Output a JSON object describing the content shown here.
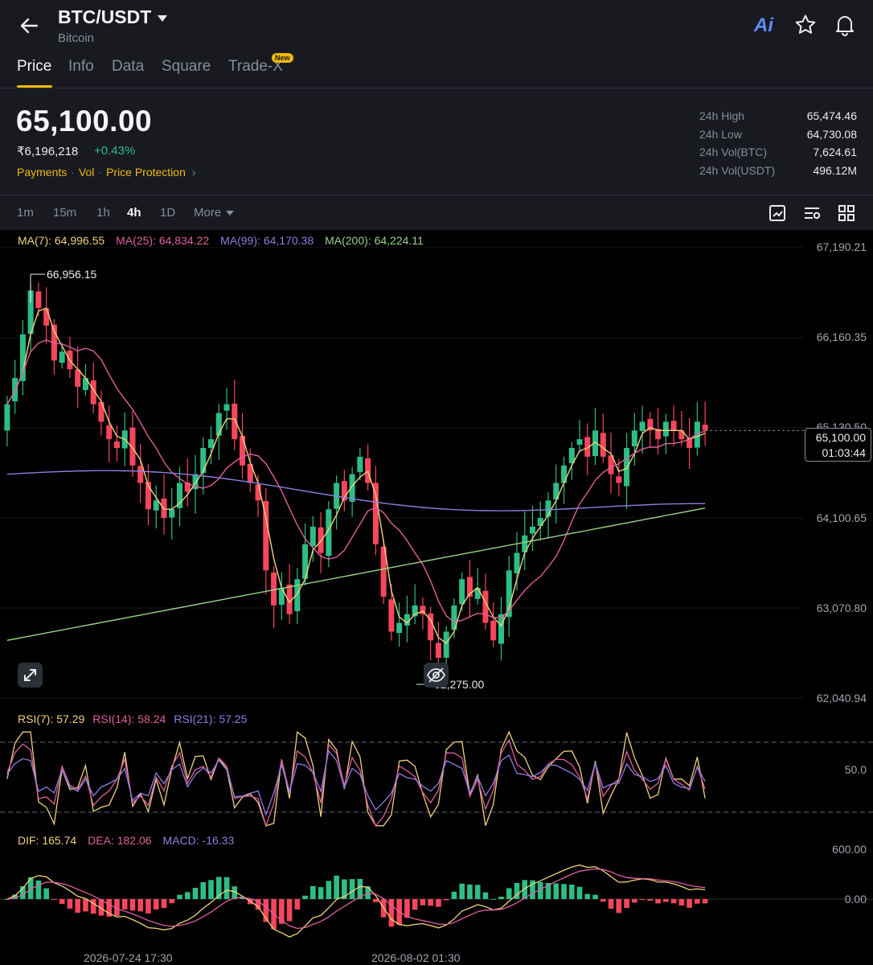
{
  "header": {
    "pair": "BTC/USDT",
    "name": "Bitcoin",
    "ai_label": "Ai",
    "icons": [
      "back-arrow-icon",
      "ai-icon",
      "star-icon",
      "bell-icon"
    ]
  },
  "tabs": [
    {
      "label": "Price",
      "active": true
    },
    {
      "label": "Info",
      "active": false
    },
    {
      "label": "Data",
      "active": false
    },
    {
      "label": "Square",
      "active": false
    },
    {
      "label": "Trade-X",
      "active": false
    }
  ],
  "new_badge": "New",
  "ticker": {
    "price": "65,100.00",
    "fiat_price": "₹6,196,218",
    "change": "+0.43%",
    "links": [
      "Payments",
      "Vol",
      "Price Protection"
    ]
  },
  "stats": [
    {
      "label": "24h High",
      "value": "65,474.46"
    },
    {
      "label": "24h Low",
      "value": "64,730.08"
    },
    {
      "label": "24h Vol(BTC)",
      "value": "7,624.61"
    },
    {
      "label": "24h Vol(USDT)",
      "value": "496.12M"
    }
  ],
  "timeframes": [
    {
      "label": "1m",
      "active": false
    },
    {
      "label": "15m",
      "active": false
    },
    {
      "label": "1h",
      "active": false
    },
    {
      "label": "4h",
      "active": true
    },
    {
      "label": "1D",
      "active": false
    },
    {
      "label": "More",
      "active": false
    }
  ],
  "colors": {
    "up": "#2ebd85",
    "down": "#f6465d",
    "accent": "#f0b90b",
    "ma7": "#f0d27a",
    "ma25": "#e05fa0",
    "ma99": "#8c7fe0",
    "ma200": "#9ad38a"
  },
  "ma_legend": [
    {
      "label": "MA(7): 64,996.55",
      "color": "#f0d27a"
    },
    {
      "label": "MA(25): 64,834.22",
      "color": "#e05fa0"
    },
    {
      "label": "MA(99): 64,170.38",
      "color": "#8c7fe0"
    },
    {
      "label": "MA(200): 64,224.11",
      "color": "#9ad38a"
    }
  ],
  "rsi_legend": [
    {
      "label": "RSI(7): 57.29",
      "color": "#f0d27a"
    },
    {
      "label": "RSI(14): 58.24",
      "color": "#e05fa0"
    },
    {
      "label": "RSI(21): 57.25",
      "color": "#8c7fe0"
    }
  ],
  "macd_legend": [
    {
      "label": "DIF: 165.74",
      "color": "#f0d27a"
    },
    {
      "label": "DEA: 182.06",
      "color": "#e05fa0"
    },
    {
      "label": "MACD: -16.33",
      "color": "#8c7fe0"
    }
  ],
  "price_axis": [
    "67,190.21",
    "66,160.35",
    "65,130.50",
    "64,100.65",
    "63,070.80",
    "62,040.94"
  ],
  "current_tag": {
    "price": "65,100.00",
    "countdown": "01:03:44"
  },
  "high_marker": "66,956.15",
  "low_marker": "62,275.00",
  "rsi_axis": "50.0",
  "macd_axis": [
    "600.00",
    "0.00"
  ],
  "time_axis": [
    "2026-07-24 17:30",
    "2026-08-02 01:30"
  ],
  "chart_data": {
    "type": "candlestick",
    "interval": "4h",
    "y_range": [
      62040.94,
      67190.21
    ],
    "closes": [
      65400,
      65700,
      66200,
      66700,
      66500,
      66300,
      65900,
      66000,
      65800,
      65600,
      65700,
      65400,
      65200,
      65000,
      64900,
      65100,
      64700,
      64500,
      64200,
      64300,
      64100,
      64200,
      64500,
      64400,
      64600,
      64900,
      65000,
      65300,
      65400,
      65000,
      64700,
      64500,
      64300,
      63500,
      63100,
      63300,
      63000,
      63400,
      63800,
      64000,
      63700,
      64200,
      64500,
      64300,
      64600,
      64800,
      64500,
      63800,
      63200,
      62800,
      62900,
      63000,
      63100,
      63000,
      62700,
      62500,
      62800,
      63100,
      63400,
      63200,
      63300,
      62900,
      62700,
      63000,
      63500,
      63700,
      63900,
      64000,
      64100,
      64300,
      64500,
      64700,
      64900,
      65000,
      64800,
      65100,
      64800,
      64600,
      64500,
      64900,
      65100,
      65200,
      65100,
      65000,
      65200,
      65100,
      65000,
      64900,
      65200,
      65100
    ],
    "ma_labels": [
      "MA(7)",
      "MA(25)",
      "MA(99)",
      "MA(200)"
    ],
    "rsi_lines": [
      "RSI(7)",
      "RSI(14)",
      "RSI(21)"
    ],
    "macd_lines": [
      "DIF",
      "DEA",
      "MACD"
    ]
  }
}
